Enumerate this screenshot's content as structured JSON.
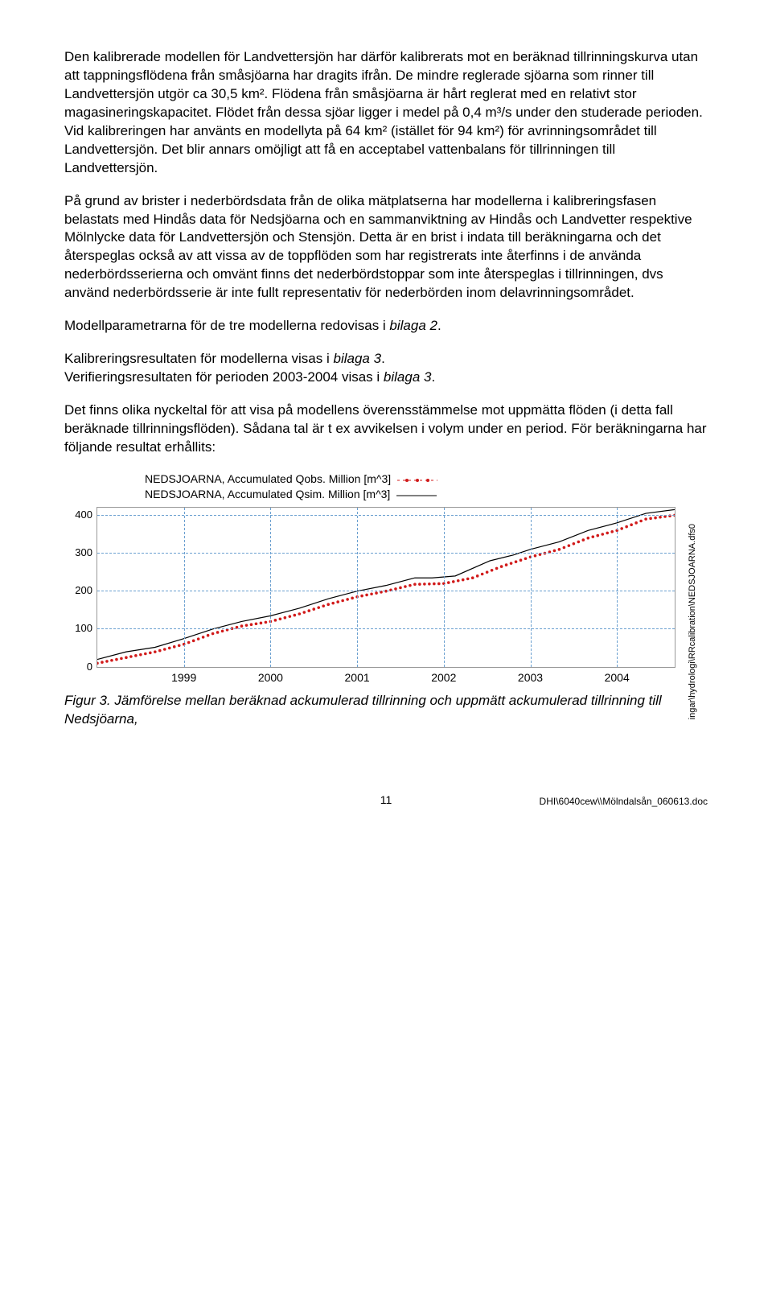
{
  "paragraphs": {
    "p1": "Den kalibrerade modellen för Landvettersjön har därför kalibrerats mot en beräknad tillrinningskurva utan att tappningsflödena från småsjöarna har dragits ifrån. De mindre reglerade sjöarna som rinner till Landvettersjön utgör ca 30,5 km². Flödena från småsjöarna är hårt reglerat med en relativt stor magasineringskapacitet. Flödet från dessa sjöar ligger i medel på 0,4 m³/s under den studerade perioden. Vid kalibreringen har använts en modellyta på 64 km² (istället för 94 km²) för avrinningsområdet till Landvettersjön. Det blir annars omöjligt att få en acceptabel vattenbalans för tillrinningen till Landvettersjön.",
    "p2": "På grund av brister i nederbördsdata från de olika mätplatserna har modellerna i kalibreringsfasen belastats med Hindås data för Nedsjöarna och en sammanviktning av Hindås och Landvetter respektive Mölnlycke data för Landvettersjön och Stensjön. Detta är en brist i indata till beräkningarna och det återspeglas också av att vissa av de toppflöden som har registrerats inte återfinns i de använda nederbördsserierna och omvänt finns det nederbördstoppar som inte återspeglas i tillrinningen, dvs använd nederbördsserie är inte fullt representativ för nederbörden inom delavrinningsområdet.",
    "p3a": "Modellparametrarna för de tre modellerna redovisas i ",
    "p3b": "bilaga 2",
    "p3c": ".",
    "p4a": "Kalibreringsresultaten för modellerna visas i ",
    "p4b": "bilaga 3",
    "p4c": ".",
    "p5a": "Verifieringsresultaten för perioden 2003-2004 visas i ",
    "p5b": "bilaga 3",
    "p5c": ".",
    "p6": "Det finns olika nyckeltal för att visa på modellens överensstämmelse mot uppmätta flöden (i detta fall beräknade tillrinningsflöden). Sådana tal är t ex avvikelsen i volym under en period. För beräkningarna har följande resultat erhållits:"
  },
  "chart": {
    "type": "line",
    "legend": {
      "obs": "NEDSJOARNA, Accumulated Qobs. Million [m^3]",
      "sim": "NEDSJOARNA, Accumulated Qsim. Million [m^3]"
    },
    "colors": {
      "obs": "#d11a1a",
      "sim": "#000000",
      "grid": "#6ba0d0",
      "border": "#999999",
      "background": "#ffffff"
    },
    "ylim": [
      0,
      420
    ],
    "yticks": [
      0,
      100,
      200,
      300,
      400
    ],
    "xticks": [
      "1999",
      "2000",
      "2001",
      "2002",
      "2003",
      "2004"
    ],
    "x_positions_pct": [
      15,
      30,
      45,
      60,
      75,
      90
    ],
    "side_label": "ingar\\hydrologi\\RRcalibration\\NEDSJOARNA.dfs0",
    "sim_points": [
      [
        0,
        20
      ],
      [
        5,
        40
      ],
      [
        10,
        52
      ],
      [
        15,
        75
      ],
      [
        20,
        100
      ],
      [
        25,
        120
      ],
      [
        30,
        135
      ],
      [
        35,
        155
      ],
      [
        40,
        180
      ],
      [
        45,
        200
      ],
      [
        50,
        215
      ],
      [
        55,
        235
      ],
      [
        58,
        235
      ],
      [
        62,
        240
      ],
      [
        68,
        280
      ],
      [
        72,
        295
      ],
      [
        75,
        310
      ],
      [
        80,
        330
      ],
      [
        85,
        360
      ],
      [
        90,
        380
      ],
      [
        95,
        405
      ],
      [
        100,
        415
      ]
    ],
    "obs_points": [
      [
        0,
        10
      ],
      [
        5,
        25
      ],
      [
        10,
        40
      ],
      [
        15,
        60
      ],
      [
        20,
        88
      ],
      [
        25,
        108
      ],
      [
        30,
        120
      ],
      [
        35,
        140
      ],
      [
        40,
        165
      ],
      [
        45,
        185
      ],
      [
        50,
        200
      ],
      [
        55,
        218
      ],
      [
        60,
        220
      ],
      [
        65,
        235
      ],
      [
        70,
        265
      ],
      [
        75,
        290
      ],
      [
        80,
        310
      ],
      [
        85,
        340
      ],
      [
        90,
        360
      ],
      [
        95,
        390
      ],
      [
        100,
        400
      ]
    ]
  },
  "caption": {
    "label": "Figur 3. ",
    "text": "Jämförelse mellan beräknad ackumulerad tillrinning och uppmätt ackumulerad tillrinning till Nedsjöarna,"
  },
  "footer": {
    "page": "11",
    "path": "DHI\\6040cew\\\\Mölndalsån_060613.doc"
  }
}
